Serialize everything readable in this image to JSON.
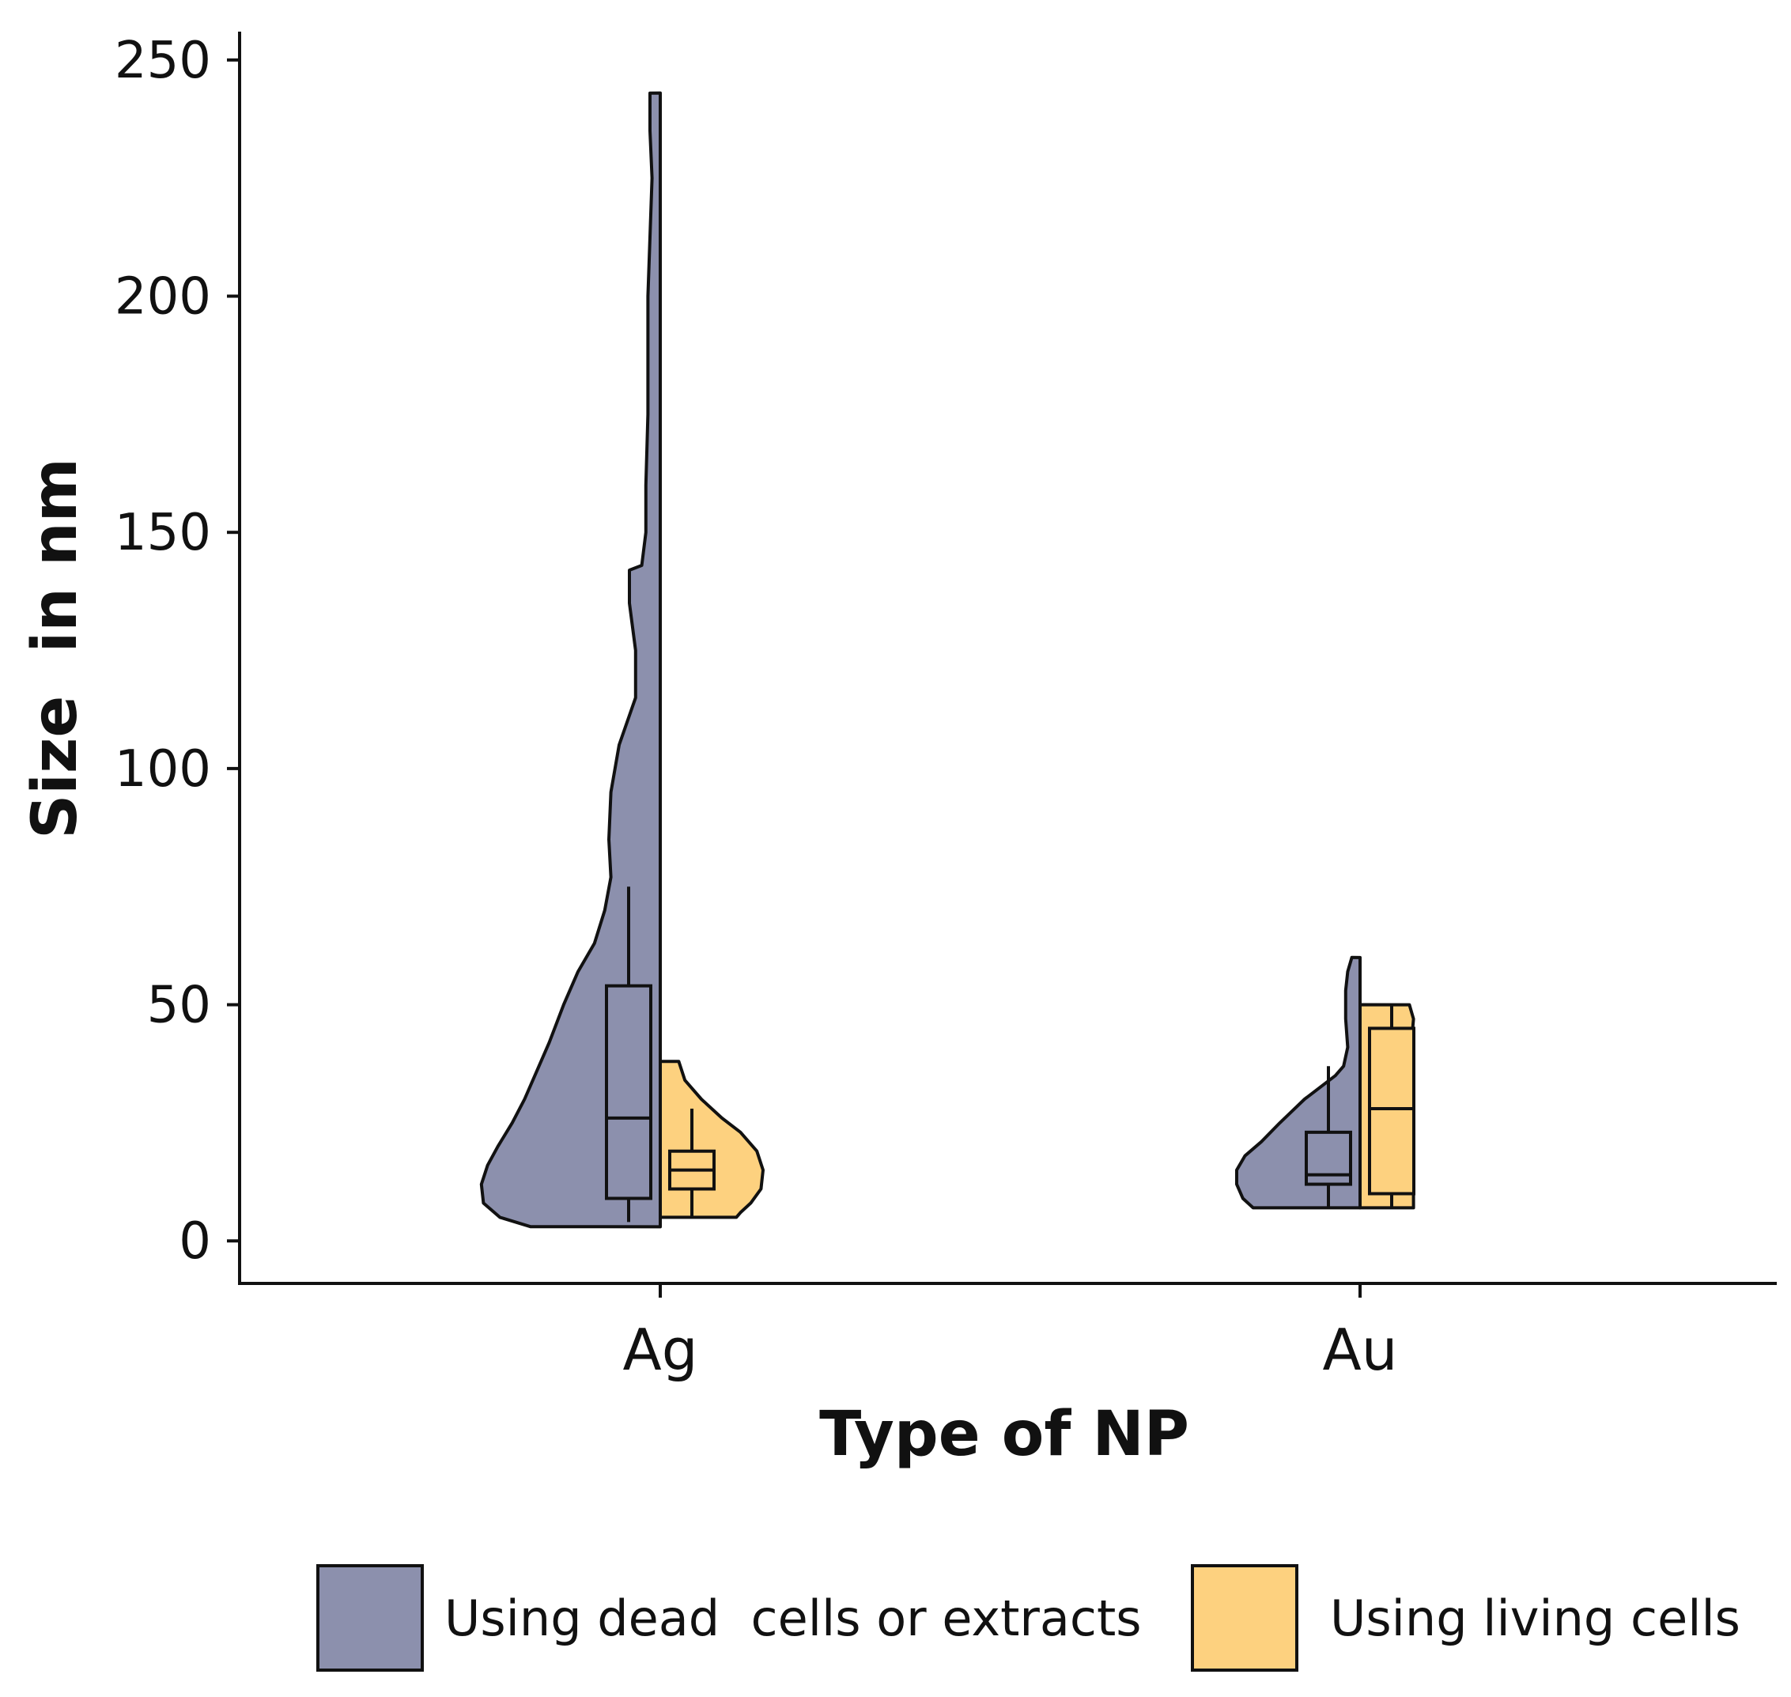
{
  "chart_data": {
    "type": "split-violin with boxplots",
    "xlabel": "Type of NP",
    "ylabel": "Size  in nm",
    "ylim": [
      -9,
      256
    ],
    "yticks": [
      0,
      50,
      100,
      150,
      200,
      250
    ],
    "ytick_labels": [
      "0",
      "50",
      "100",
      "150",
      "200",
      "250"
    ],
    "categories": [
      "Ag",
      "Au"
    ],
    "legend_position": "bottom",
    "series": [
      {
        "name": "Using dead  cells or extracts",
        "color": "#8c90ad",
        "side": "left",
        "groups": [
          {
            "category": "Ag",
            "box": {
              "whisker_low": 4,
              "q1": 9,
              "median": 26,
              "q3": 54,
              "whisker_high": 75
            },
            "density": [
              [
                3,
                0.63
              ],
              [
                5,
                0.78
              ],
              [
                8,
                0.86
              ],
              [
                12,
                0.87
              ],
              [
                16,
                0.84
              ],
              [
                20,
                0.79
              ],
              [
                25,
                0.72
              ],
              [
                30,
                0.66
              ],
              [
                36,
                0.6
              ],
              [
                42,
                0.54
              ],
              [
                50,
                0.47
              ],
              [
                57,
                0.4
              ],
              [
                63,
                0.32
              ],
              [
                70,
                0.27
              ],
              [
                77,
                0.24
              ],
              [
                85,
                0.25
              ],
              [
                95,
                0.24
              ],
              [
                105,
                0.2
              ],
              [
                115,
                0.12
              ],
              [
                125,
                0.12
              ],
              [
                135,
                0.15
              ],
              [
                142,
                0.15
              ],
              [
                143,
                0.09
              ],
              [
                150,
                0.07
              ],
              [
                160,
                0.07
              ],
              [
                175,
                0.06
              ],
              [
                200,
                0.06
              ],
              [
                225,
                0.04
              ],
              [
                235,
                0.05
              ],
              [
                243,
                0.05
              ]
            ]
          },
          {
            "category": "Au",
            "box": {
              "whisker_low": 7,
              "q1": 12,
              "median": 14,
              "q3": 23,
              "whisker_high": 37
            },
            "density": [
              [
                7,
                0.52
              ],
              [
                9,
                0.57
              ],
              [
                12,
                0.6
              ],
              [
                15,
                0.6
              ],
              [
                18,
                0.56
              ],
              [
                21,
                0.48
              ],
              [
                25,
                0.39
              ],
              [
                30,
                0.27
              ],
              [
                35,
                0.12
              ],
              [
                37,
                0.08
              ],
              [
                41,
                0.06
              ],
              [
                47,
                0.07
              ],
              [
                53,
                0.07
              ],
              [
                57,
                0.06
              ],
              [
                60,
                0.04
              ]
            ]
          }
        ]
      },
      {
        "name": "Using living cells",
        "color": "#fdd17f",
        "side": "right",
        "groups": [
          {
            "category": "Ag",
            "box": {
              "whisker_low": 5,
              "q1": 11,
              "median": 15,
              "q3": 19,
              "whisker_high": 28
            },
            "density": [
              [
                5,
                0.37
              ],
              [
                6,
                0.39
              ],
              [
                8,
                0.44
              ],
              [
                11,
                0.49
              ],
              [
                15,
                0.5
              ],
              [
                19,
                0.47
              ],
              [
                23,
                0.39
              ],
              [
                26,
                0.3
              ],
              [
                30,
                0.2
              ],
              [
                34,
                0.12
              ],
              [
                38,
                0.09
              ]
            ]
          },
          {
            "category": "Au",
            "box": {
              "whisker_low": 7,
              "q1": 10,
              "median": 28,
              "q3": 45,
              "whisker_high": 50
            },
            "density": [
              [
                7,
                0.26
              ],
              [
                10,
                0.26
              ],
              [
                14,
                0.24
              ],
              [
                20,
                0.16
              ],
              [
                28,
                0.13
              ],
              [
                35,
                0.18
              ],
              [
                42,
                0.25
              ],
              [
                47,
                0.26
              ],
              [
                50,
                0.24
              ]
            ]
          }
        ]
      }
    ]
  }
}
